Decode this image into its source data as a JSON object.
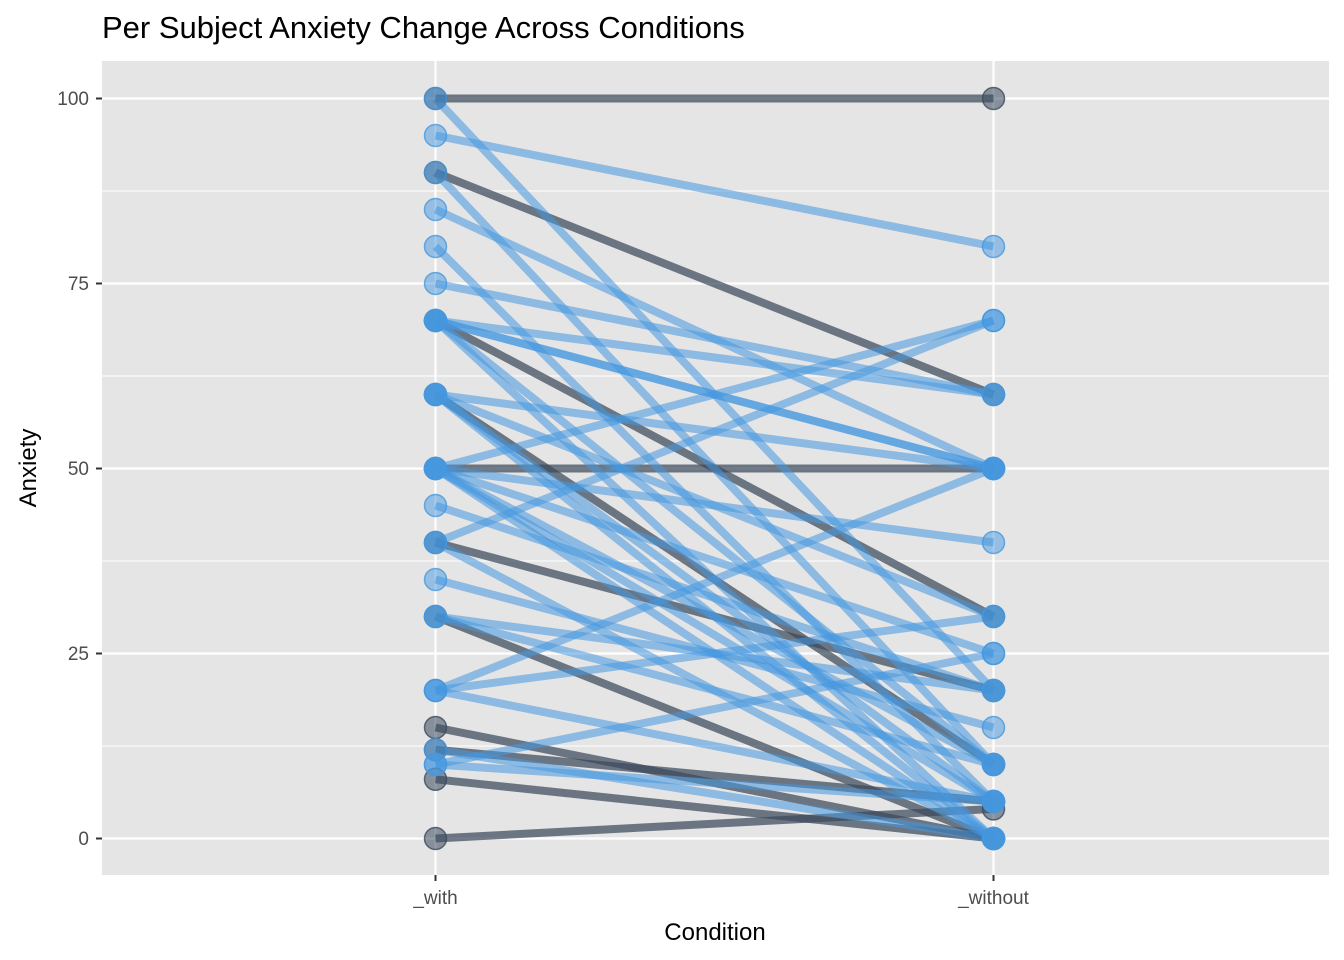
{
  "chart_data": {
    "type": "line",
    "title": "Per Subject Anxiety Change Across Conditions",
    "xlabel": "Condition",
    "ylabel": "Anxiety",
    "categories": [
      "_with",
      "_without"
    ],
    "ylim": [
      -5,
      105
    ],
    "yticks": [
      0,
      25,
      50,
      75,
      100
    ],
    "grid": true,
    "legend": "none",
    "colors": {
      "panel": "#e5e5e5",
      "grid": "#ffffff",
      "dark": "#3b4a5c",
      "light": "#4598e0"
    },
    "subjects": [
      {
        "with": 100,
        "without": 100,
        "group": "dark"
      },
      {
        "with": 90,
        "without": 60,
        "group": "dark"
      },
      {
        "with": 50,
        "without": 50,
        "group": "dark"
      },
      {
        "with": 70,
        "without": 30,
        "group": "dark"
      },
      {
        "with": 40,
        "without": 20,
        "group": "dark"
      },
      {
        "with": 30,
        "without": 0,
        "group": "dark"
      },
      {
        "with": 15,
        "without": 0,
        "group": "dark"
      },
      {
        "with": 12,
        "without": 5,
        "group": "dark"
      },
      {
        "with": 8,
        "without": 0,
        "group": "dark"
      },
      {
        "with": 0,
        "without": 4,
        "group": "dark"
      },
      {
        "with": 60,
        "without": 10,
        "group": "dark"
      },
      {
        "with": 100,
        "without": 20,
        "group": "light"
      },
      {
        "with": 95,
        "without": 80,
        "group": "light"
      },
      {
        "with": 90,
        "without": 10,
        "group": "light"
      },
      {
        "with": 85,
        "without": 50,
        "group": "light"
      },
      {
        "with": 80,
        "without": 5,
        "group": "light"
      },
      {
        "with": 75,
        "without": 60,
        "group": "light"
      },
      {
        "with": 70,
        "without": 50,
        "group": "light"
      },
      {
        "with": 70,
        "without": 50,
        "group": "light"
      },
      {
        "with": 70,
        "without": 60,
        "group": "light"
      },
      {
        "with": 70,
        "without": 0,
        "group": "light"
      },
      {
        "with": 70,
        "without": 10,
        "group": "light"
      },
      {
        "with": 60,
        "without": 50,
        "group": "light"
      },
      {
        "with": 60,
        "without": 30,
        "group": "light"
      },
      {
        "with": 60,
        "without": 0,
        "group": "light"
      },
      {
        "with": 60,
        "without": 5,
        "group": "light"
      },
      {
        "with": 50,
        "without": 70,
        "group": "light"
      },
      {
        "with": 50,
        "without": 40,
        "group": "light"
      },
      {
        "with": 50,
        "without": 25,
        "group": "light"
      },
      {
        "with": 50,
        "without": 0,
        "group": "light"
      },
      {
        "with": 50,
        "without": 10,
        "group": "light"
      },
      {
        "with": 50,
        "without": 5,
        "group": "light"
      },
      {
        "with": 45,
        "without": 20,
        "group": "light"
      },
      {
        "with": 40,
        "without": 70,
        "group": "light"
      },
      {
        "with": 40,
        "without": 0,
        "group": "light"
      },
      {
        "with": 35,
        "without": 15,
        "group": "light"
      },
      {
        "with": 30,
        "without": 20,
        "group": "light"
      },
      {
        "with": 30,
        "without": 10,
        "group": "light"
      },
      {
        "with": 20,
        "without": 50,
        "group": "light"
      },
      {
        "with": 20,
        "without": 5,
        "group": "light"
      },
      {
        "with": 20,
        "without": 30,
        "group": "light"
      },
      {
        "with": 12,
        "without": 0,
        "group": "light"
      },
      {
        "with": 10,
        "without": 25,
        "group": "light"
      },
      {
        "with": 10,
        "without": 5,
        "group": "light"
      }
    ]
  }
}
